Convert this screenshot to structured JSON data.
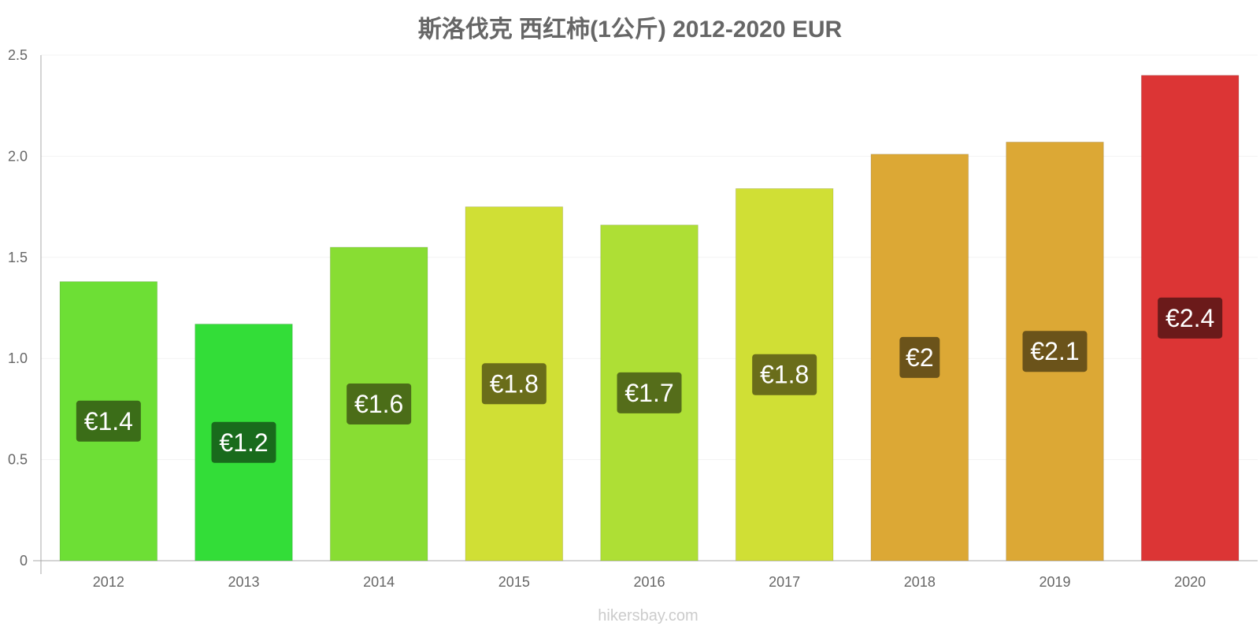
{
  "chart_data": {
    "type": "bar",
    "title": "斯洛伐克 西红柿(1公斤) 2012-2020 EUR",
    "xlabel": "",
    "ylabel": "",
    "ylim": [
      0,
      2.5
    ],
    "yticks": [
      "0",
      "0.5",
      "1.0",
      "1.5",
      "2.0",
      "2.5"
    ],
    "categories": [
      "2012",
      "2013",
      "2014",
      "2015",
      "2016",
      "2017",
      "2018",
      "2019",
      "2020"
    ],
    "values": [
      1.38,
      1.17,
      1.55,
      1.75,
      1.66,
      1.84,
      2.01,
      2.07,
      2.4
    ],
    "data_labels": [
      "€1.4",
      "€1.2",
      "€1.6",
      "€1.8",
      "€1.7",
      "€1.8",
      "€2",
      "€2.1",
      "€2.4"
    ],
    "bar_colors": [
      "#6ddf35",
      "#33dd38",
      "#88dd33",
      "#d0df35",
      "#aedf35",
      "#d0df35",
      "#dca835",
      "#dca835",
      "#dc3535"
    ],
    "label_bg_colors": [
      "#3b6d18",
      "#196b1c",
      "#4b6d18",
      "#6a6d1a",
      "#556d1a",
      "#6a6d1a",
      "#6b531a",
      "#6b531a",
      "#6b1a1a"
    ],
    "grid": true,
    "legend": "none"
  },
  "watermark": "hikersbay.com"
}
